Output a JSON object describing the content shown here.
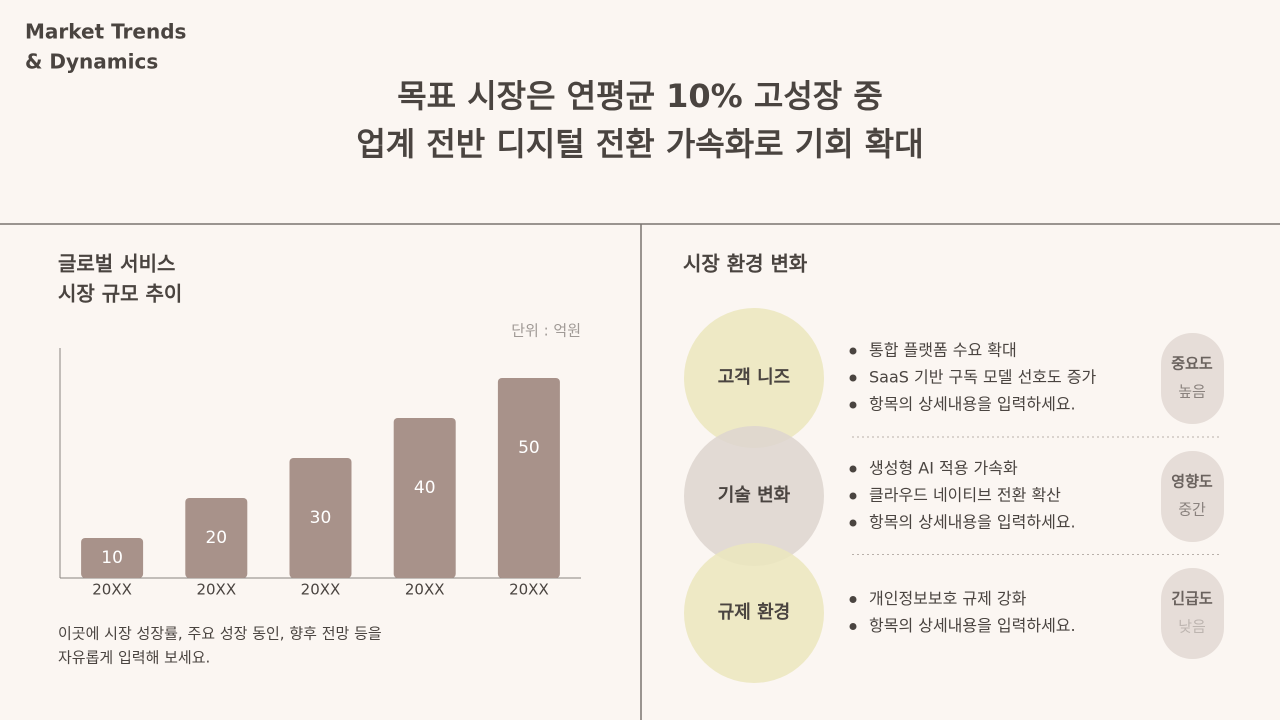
{
  "header": {
    "brand": [
      "Market Trends",
      "& Dynamics"
    ],
    "headline": [
      "목표 시장은 연평균 10% 고성장 중",
      "업계 전반 디지털 전환 가속화로 기회 확대"
    ]
  },
  "chart_data": {
    "type": "bar",
    "title": [
      "글로벌 서비스",
      "시장 규모 추이"
    ],
    "unit_note": "단위 : 억원",
    "categories": [
      "20XX",
      "20XX",
      "20XX",
      "20XX",
      "20XX"
    ],
    "values": [
      10,
      20,
      30,
      40,
      50
    ],
    "color": "#a8928a",
    "caption": [
      "이곳에 시장 성장률, 주요 성장 동인, 향후 전망 등을",
      "자유롭게 입력해 보세요."
    ]
  },
  "environment": {
    "title": "시장 환경 변화",
    "items": [
      {
        "label": "고객 니즈",
        "bullets": [
          "통합 플랫폼 수요 확대",
          "SaaS 기반 구독 모델 선호도 증가",
          "항목의 상세내용을 입력하세요."
        ],
        "badge": [
          "중요도",
          "높음"
        ]
      },
      {
        "label": "기술 변화",
        "bullets": [
          "생성형 AI 적용 가속화",
          "클라우드 네이티브 전환 확산",
          "항목의 상세내용을 입력하세요."
        ],
        "badge": [
          "영향도",
          "중간"
        ]
      },
      {
        "label": "규제 환경",
        "bullets": [
          "개인정보보호 규제 강화",
          "항목의 상세내용을 입력하세요."
        ],
        "badge": [
          "긴급도",
          "낮음"
        ]
      }
    ]
  }
}
